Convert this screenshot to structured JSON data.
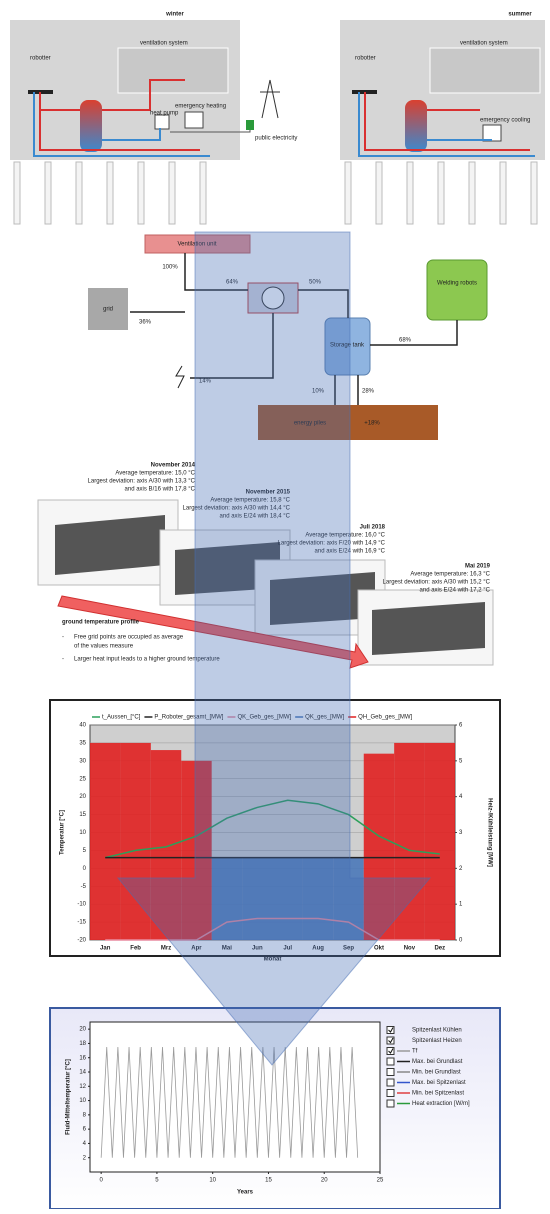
{
  "winter": {
    "title": "winter",
    "labels": [
      "robotter",
      "ventilation system",
      "heat pump",
      "emergency heating",
      "public electricity"
    ]
  },
  "summer": {
    "title": "summer",
    "labels": [
      "robotter",
      "ventilation system",
      "emergency cooling"
    ]
  },
  "flow": {
    "ventilation": "Ventilation unit",
    "grid": "grid",
    "robots": "Welding robots",
    "storage": "Storage tank",
    "piles": "energy piles",
    "gain": "+18%",
    "shares": [
      "100%",
      "64%",
      "50%",
      "36%",
      "68%",
      "14%",
      "10%",
      "28%"
    ]
  },
  "measurements": [
    {
      "title": "November 2014",
      "lines": [
        "Average temperature: 15,0 °C",
        "Largest deviation: axis A/30 with 13,3 °C",
        "and axis B/16 with 17,8 °C"
      ]
    },
    {
      "title": "November 2015",
      "lines": [
        "Average temperature: 15,8 °C",
        "Largest deviation: axis A/30 with 14,4 °C",
        "and axis E/24 with 18,4 °C"
      ]
    },
    {
      "title": "Juli 2018",
      "lines": [
        "Average temperature: 16,0 °C",
        "Largest deviation: axis F/20 with 14,9 °C",
        "and axis E/24 with 16,9 °C"
      ]
    },
    {
      "title": "Mai 2019",
      "lines": [
        "Average temperature: 16,3 °C",
        "Largest deviation: axis A/30 with 15,2 °C",
        "and axis E/24 with 17,2 °C"
      ]
    }
  ],
  "profile": {
    "title": "ground temperature profile",
    "bullets": [
      [
        "Free grid points are occupied as average",
        "of the values measure"
      ],
      [
        "Larger heat input leads to a higher ground temperature"
      ]
    ]
  },
  "charts": [
    {
      "type": "bar-line",
      "xlabel": "Monat",
      "ylabel": "Temperatur [°C]",
      "y2label": "Heiz-/Kühlleistung [MW]",
      "categories": [
        "Jan",
        "Feb",
        "Mrz",
        "Apr",
        "Mai",
        "Jun",
        "Jul",
        "Aug",
        "Sep",
        "Okt",
        "Nov",
        "Dez"
      ],
      "ylim": [
        -20,
        40
      ],
      "yticks": [
        -20,
        -15,
        -10,
        -5,
        0,
        5,
        10,
        15,
        20,
        25,
        30,
        35,
        40
      ],
      "y2lim": [
        0,
        6
      ],
      "y2ticks": [
        0,
        1,
        2,
        3,
        4,
        5,
        6
      ],
      "grid": true,
      "series": [
        {
          "name": "t_Aussen_[°C]",
          "color": "#2ca05a",
          "kind": "line",
          "values": [
            3,
            5,
            6,
            9,
            14,
            17,
            19,
            18,
            15,
            9,
            5,
            4
          ]
        },
        {
          "name": "P_Roboter_gesamt_[MW]",
          "color": "#222222",
          "kind": "line",
          "axis": "y2",
          "values": [
            2.3,
            2.3,
            2.3,
            2.3,
            2.3,
            2.3,
            2.3,
            2.3,
            2.3,
            2.3,
            2.3,
            2.3
          ]
        },
        {
          "name": "QK_Geb_ges_[MW]",
          "color": "#e88ca0",
          "kind": "line",
          "axis": "y2",
          "values": [
            0,
            0,
            0,
            0,
            0.5,
            0.6,
            0.6,
            0.6,
            0.5,
            0,
            0,
            0
          ]
        },
        {
          "name": "QK_ges_[MW]",
          "color": "#4a78b8",
          "kind": "bar",
          "axis": "y2",
          "values": [
            0,
            0,
            0,
            0,
            2.3,
            2.3,
            2.3,
            2.3,
            2.3,
            0,
            0,
            0
          ]
        },
        {
          "name": "QH_Geb_ges_[MW]",
          "color": "#e02020",
          "kind": "bar",
          "axis": "y2",
          "values": [
            5.5,
            5.5,
            5.3,
            5.0,
            0,
            0,
            0,
            0,
            0,
            5.2,
            5.5,
            5.5
          ]
        }
      ]
    },
    {
      "type": "line",
      "xlabel": "Years",
      "ylabel": "Fluid-Mitteltemperatur [°C]",
      "xlim": [
        -1,
        25
      ],
      "xticks": [
        0,
        5,
        10,
        15,
        20,
        25
      ],
      "ylim": [
        0,
        21
      ],
      "yticks": [
        2,
        4,
        6,
        8,
        10,
        12,
        14,
        16,
        18,
        20
      ],
      "x": [
        0,
        0.5,
        1,
        1.5,
        2,
        2.5,
        3,
        3.5,
        4,
        4.5,
        5,
        5.5,
        6,
        6.5,
        7,
        7.5,
        8,
        8.5,
        9,
        9.5,
        10,
        10.5,
        11,
        11.5,
        12,
        12.5,
        13,
        13.5,
        14,
        14.5,
        15,
        15.5,
        16,
        16.5,
        17,
        17.5,
        18,
        18.5,
        19,
        19.5,
        20,
        20.5,
        21,
        21.5,
        22,
        22.5,
        23,
        23.5,
        24
      ],
      "series": [
        {
          "name": "Tf",
          "color": "#9a9a9a",
          "values": [
            2,
            17.5,
            2,
            17.5,
            2,
            17.5,
            2,
            17.5,
            2,
            17.5,
            2,
            17.5,
            2,
            17.5,
            2,
            17.5,
            2,
            17.5,
            2,
            17.5,
            2,
            17.5,
            2,
            17.5,
            2,
            17.5,
            2,
            17.5,
            2,
            17.5,
            2,
            17.5,
            2,
            17.5,
            2,
            17.5,
            2,
            17.5,
            2,
            17.5,
            2,
            17.5,
            2,
            17.5,
            2,
            17.5,
            2
          ]
        }
      ],
      "legend": [
        {
          "name": "Spitzenlast Kühlen",
          "checked": true
        },
        {
          "name": "Spitzenlast Heizen",
          "checked": true
        },
        {
          "name": "Tf",
          "checked": true,
          "color": "#9a9a9a"
        },
        {
          "name": "Max. bei Grundlast",
          "checked": false,
          "color": "#222222"
        },
        {
          "name": "Min. bei Grundlast",
          "checked": false,
          "color": "#888888"
        },
        {
          "name": "Max. bei Spitzenlast",
          "checked": false,
          "color": "#3355cc"
        },
        {
          "name": "Min. bei Spitzenlast",
          "checked": false,
          "color": "#e04040"
        },
        {
          "name": "Heat extraction [W/m]",
          "checked": false,
          "color": "#2a9a3a"
        }
      ]
    }
  ]
}
